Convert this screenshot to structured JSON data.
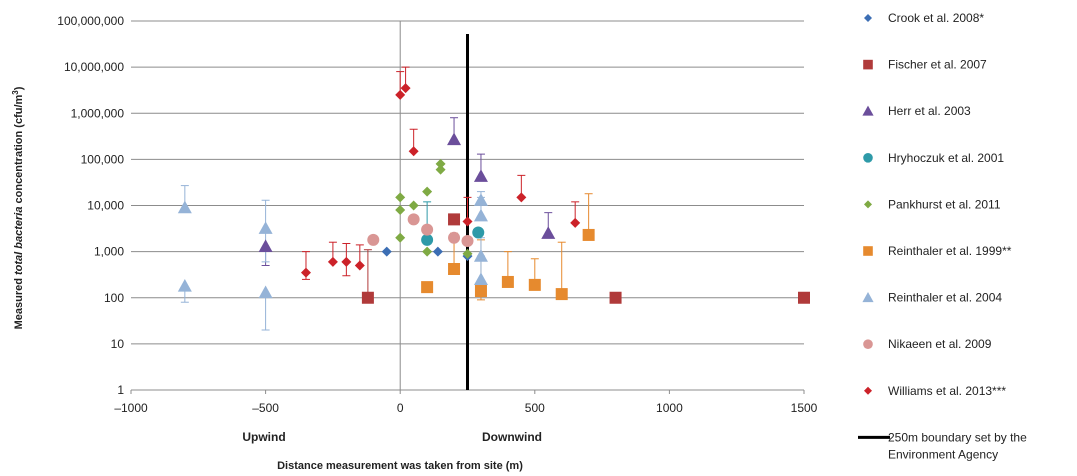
{
  "chart_data": {
    "type": "scatter",
    "xlabel": "Distance measurement was taken from site (m)",
    "ylabel": {
      "pre": "Measured ",
      "italic": "total bacteria",
      "post": " concentration (cfu/m",
      "sup": "3",
      "end": ")"
    },
    "xlim": [
      -1000,
      1500
    ],
    "ylim": [
      1,
      100000000
    ],
    "yscale": "log",
    "grid": "horizontal",
    "legend_position": "right",
    "x_ticks": [
      "–1000",
      "–500",
      "0",
      "500",
      "1000",
      "1500"
    ],
    "x_tick_values": [
      -1000,
      -500,
      0,
      500,
      1000,
      1500
    ],
    "y_ticks": [
      "1",
      "10",
      "100",
      "1,000",
      "10,000",
      "100,000",
      "1,000,000",
      "10,000,000",
      "100,000,000"
    ],
    "y_tick_values": [
      1,
      10,
      100,
      1000,
      10000,
      100000,
      1000000,
      10000000,
      100000000
    ],
    "region_labels": {
      "upwind": "Upwind",
      "downwind": "Downwind"
    },
    "boundary": {
      "x": 250,
      "label_line1": "250m boundary set by the",
      "label_line2": "Environment Agency",
      "color": "#000000"
    },
    "series": [
      {
        "name": "Crook et al. 2008*",
        "marker": "diamond",
        "color": "#3c6eb4",
        "points": [
          [
            -50,
            1000
          ],
          [
            140,
            1000
          ],
          [
            250,
            800
          ]
        ]
      },
      {
        "name": "Fischer et al. 2007",
        "marker": "square",
        "color": "#b03a3a",
        "points": [
          [
            -120,
            100
          ],
          [
            200,
            5000
          ],
          [
            800,
            100
          ],
          [
            1500,
            100
          ]
        ],
        "error_up": [
          [
            -120,
            100,
            1100
          ]
        ]
      },
      {
        "name": "Herr et al. 2003",
        "marker": "triangle",
        "color": "#6b4e9b",
        "points": [
          [
            -500,
            1300
          ],
          [
            200,
            270000
          ],
          [
            300,
            43000
          ],
          [
            550,
            2500
          ]
        ],
        "error_up": [
          [
            200,
            270000,
            800000
          ],
          [
            300,
            43000,
            130000
          ],
          [
            550,
            2500,
            7000
          ]
        ],
        "error_down": [
          [
            -500,
            1300,
            500
          ]
        ]
      },
      {
        "name": "Hryhoczuk et al. 2001",
        "marker": "circle",
        "color": "#2e9aa8",
        "points": [
          [
            100,
            1800
          ],
          [
            290,
            2600
          ]
        ],
        "error_up": [
          [
            100,
            1800,
            12000
          ]
        ]
      },
      {
        "name": "Pankhurst et al. 2011",
        "marker": "diamond",
        "color": "#7faa44",
        "points": [
          [
            0,
            15000
          ],
          [
            0,
            8000
          ],
          [
            0,
            2000
          ],
          [
            50,
            10000
          ],
          [
            100,
            20000
          ],
          [
            100,
            1000
          ],
          [
            150,
            80000
          ],
          [
            150,
            60000
          ],
          [
            250,
            900
          ]
        ]
      },
      {
        "name": "Reinthaler et al. 1999**",
        "marker": "square",
        "color": "#e68a2e",
        "points": [
          [
            100,
            170
          ],
          [
            200,
            420
          ],
          [
            300,
            140
          ],
          [
            400,
            220
          ],
          [
            500,
            190
          ],
          [
            600,
            120
          ],
          [
            700,
            2300
          ]
        ],
        "error_up": [
          [
            200,
            420,
            2500
          ],
          [
            300,
            140,
            1800
          ],
          [
            400,
            220,
            1000
          ],
          [
            500,
            190,
            700
          ],
          [
            600,
            120,
            1600
          ],
          [
            700,
            2300,
            18000
          ]
        ],
        "error_down": [
          [
            300,
            140,
            90
          ]
        ]
      },
      {
        "name": "Reinthaler et al. 2004",
        "marker": "triangle",
        "color": "#95b3d7",
        "points": [
          [
            -800,
            9000
          ],
          [
            -800,
            180
          ],
          [
            -500,
            3200
          ],
          [
            -500,
            130
          ],
          [
            300,
            13000
          ],
          [
            300,
            6000
          ],
          [
            300,
            800
          ],
          [
            300,
            250
          ]
        ],
        "error_up": [
          [
            -800,
            9000,
            27000
          ],
          [
            -500,
            3200,
            13000
          ],
          [
            300,
            13000,
            20000
          ],
          [
            300,
            6000,
            15000
          ],
          [
            300,
            800,
            2000
          ],
          [
            300,
            250,
            800
          ]
        ],
        "error_down": [
          [
            -800,
            180,
            80
          ],
          [
            -500,
            3200,
            600
          ],
          [
            -500,
            130,
            20
          ]
        ]
      },
      {
        "name": "Nikaeen et al. 2009",
        "marker": "circle",
        "color": "#d99694",
        "points": [
          [
            -100,
            1800
          ],
          [
            50,
            5000
          ],
          [
            100,
            3000
          ],
          [
            200,
            2000
          ],
          [
            250,
            1700
          ]
        ]
      },
      {
        "name": "Williams et al. 2013***",
        "marker": "diamond",
        "color": "#cc2229",
        "points": [
          [
            -350,
            350
          ],
          [
            -250,
            600
          ],
          [
            -200,
            600
          ],
          [
            -150,
            500
          ],
          [
            0,
            2500000
          ],
          [
            20,
            3500000
          ],
          [
            50,
            150000
          ],
          [
            250,
            4500
          ],
          [
            450,
            15000
          ],
          [
            650,
            4200
          ]
        ],
        "error_up": [
          [
            -350,
            350,
            1000
          ],
          [
            -250,
            600,
            1600
          ],
          [
            -200,
            600,
            1500
          ],
          [
            -150,
            500,
            1400
          ],
          [
            0,
            2500000,
            8000000
          ],
          [
            20,
            3500000,
            10000000
          ],
          [
            50,
            150000,
            450000
          ],
          [
            250,
            4500,
            15000
          ],
          [
            450,
            15000,
            45000
          ],
          [
            650,
            4200,
            12000
          ]
        ],
        "error_down": [
          [
            -350,
            350,
            250
          ],
          [
            -200,
            600,
            300
          ]
        ]
      }
    ]
  }
}
